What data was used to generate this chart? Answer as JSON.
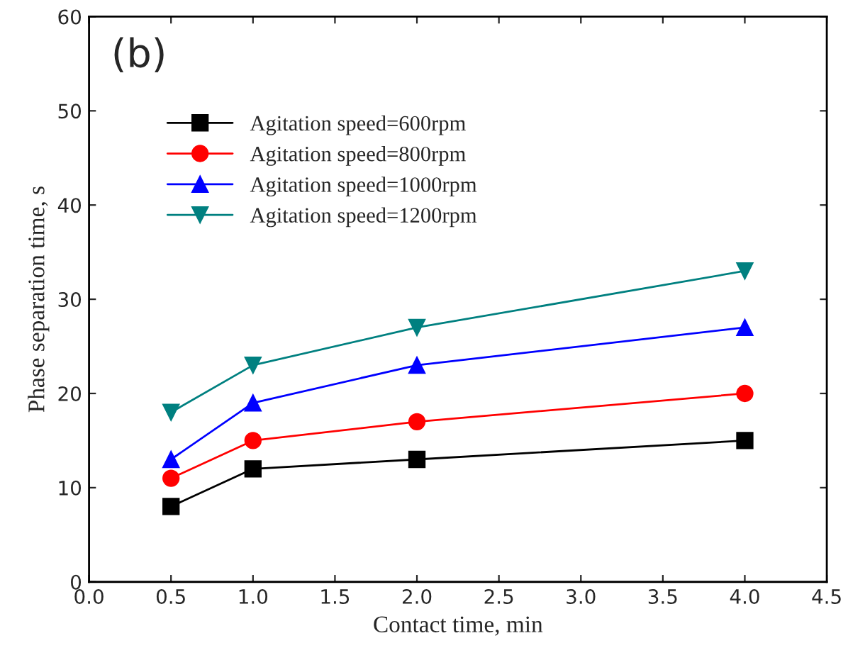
{
  "chart_data": {
    "type": "line",
    "xlabel": "Contact time, min",
    "ylabel": "Phase separation time, s",
    "annotations": [
      "(b)"
    ],
    "x": [
      0.5,
      1,
      2,
      4
    ],
    "series": [
      {
        "name": "Agitation speed=600rpm",
        "color": "#000000",
        "marker": "square",
        "values": [
          8,
          12,
          13,
          15
        ]
      },
      {
        "name": "Agitation speed=800rpm",
        "color": "#ff0000",
        "marker": "circle",
        "values": [
          11,
          15,
          17,
          20
        ]
      },
      {
        "name": "Agitation speed=1000rpm",
        "color": "#0000ff",
        "marker": "triangle",
        "values": [
          13,
          19,
          23,
          27
        ]
      },
      {
        "name": "Agitation speed=1200rpm",
        "color": "#008080",
        "marker": "triangle_down",
        "values": [
          18,
          23,
          27,
          33
        ]
      }
    ],
    "xlim": [
      0,
      4.5
    ],
    "xticks": [
      {
        "value": 0,
        "label": "0.0"
      },
      0.5,
      {
        "value": 1,
        "label": "1.0"
      },
      1.5,
      {
        "value": 2,
        "label": "2.0"
      },
      2.5,
      {
        "value": 3,
        "label": "3.0"
      },
      3.5,
      {
        "value": 4,
        "label": "4.0"
      },
      4.5
    ],
    "ylim": [
      0,
      60
    ],
    "yticks": [
      0,
      10,
      20,
      30,
      40,
      50,
      60
    ],
    "grid": false,
    "legend": "top left",
    "line_style": "solid"
  }
}
